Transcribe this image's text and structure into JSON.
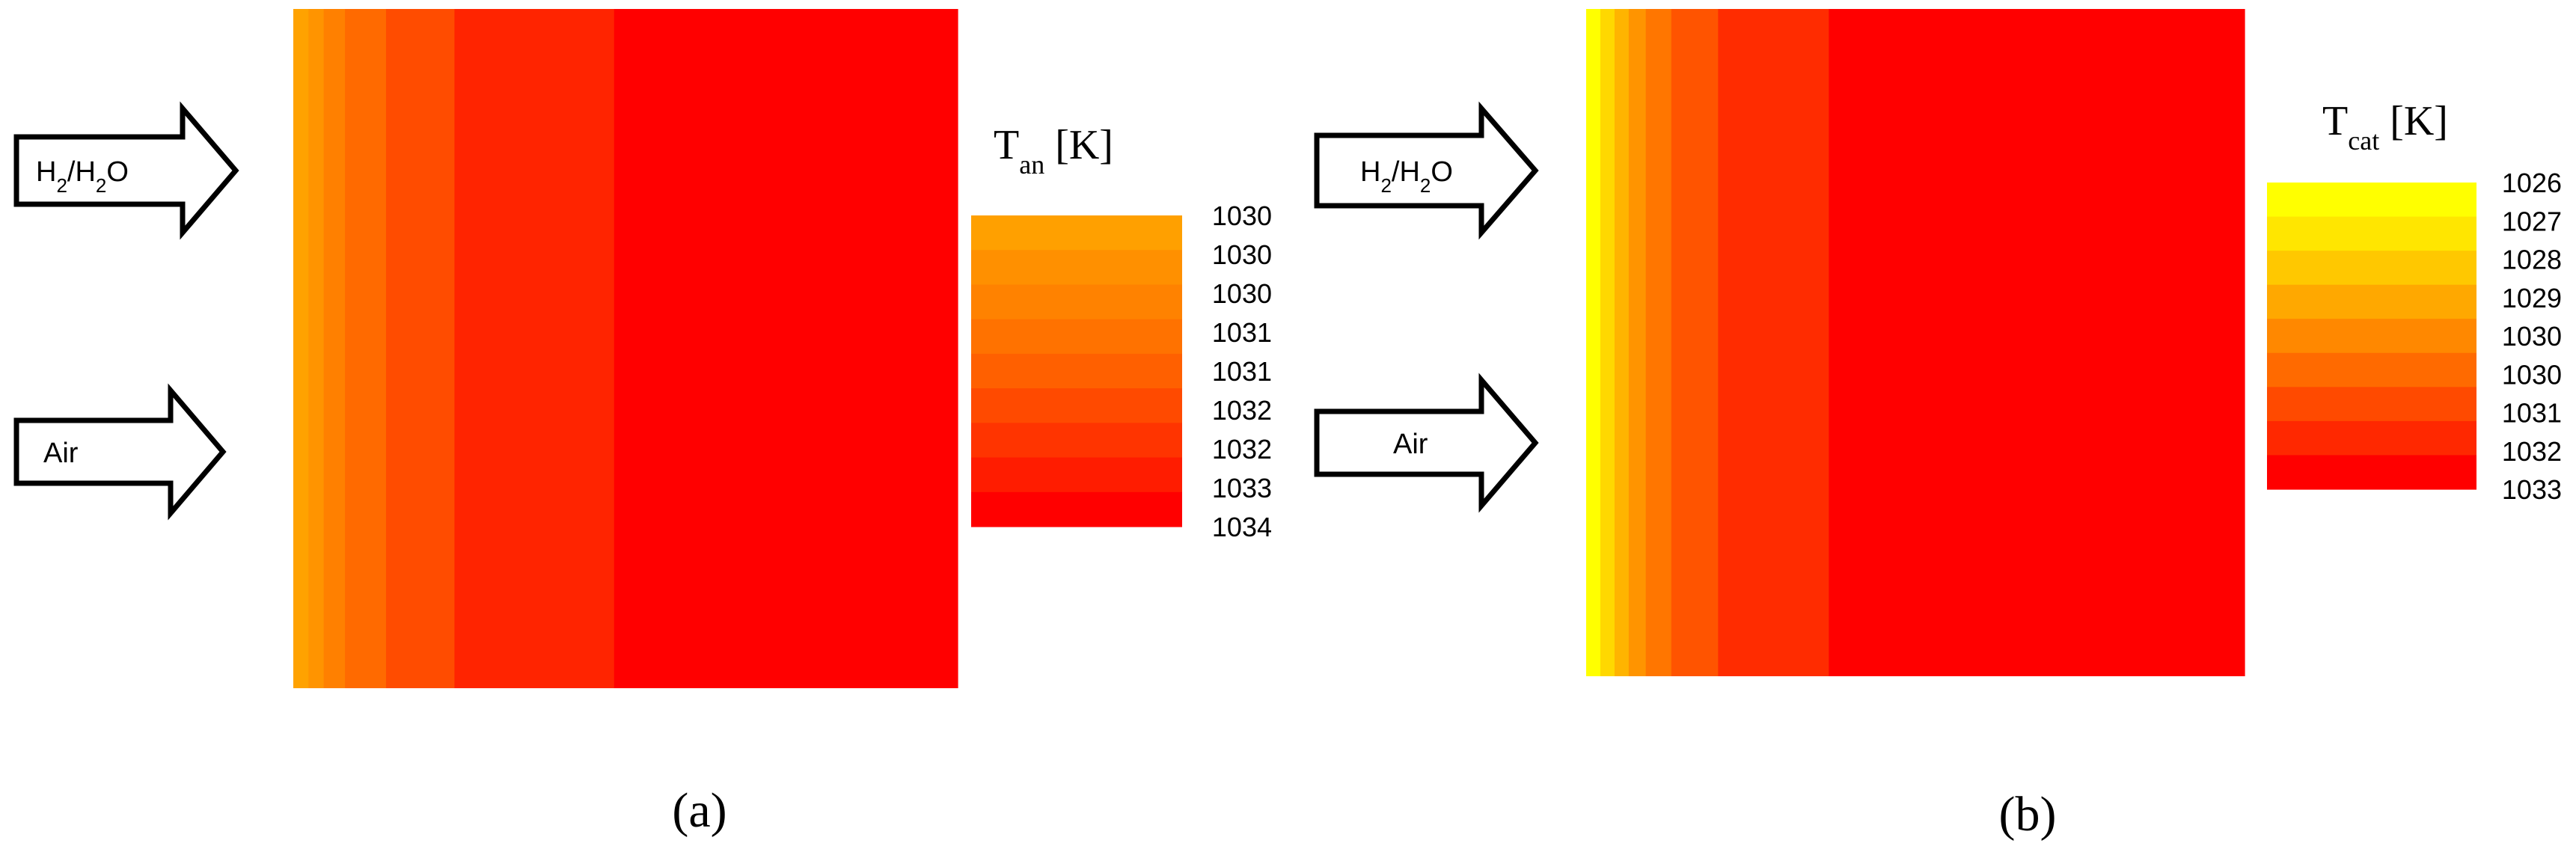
{
  "panels": [
    {
      "id": "a",
      "caption": "(a)",
      "arrows": [
        {
          "label_main": "H",
          "label_sub1": "2",
          "label_mid": "/H",
          "label_sub2": "2",
          "label_end": "O"
        },
        {
          "label_main": "Air"
        }
      ],
      "legend": {
        "title_main": "T",
        "title_sub": "an",
        "title_unit": " [K]",
        "ticks": [
          "1030",
          "1030",
          "1030",
          "1031",
          "1031",
          "1032",
          "1032",
          "1033",
          "1034"
        ]
      },
      "map_bands": [
        {
          "color": "#FFA200",
          "weight": 1.0
        },
        {
          "color": "#FF9400",
          "weight": 1.0
        },
        {
          "color": "#FF8000",
          "weight": 1.4
        },
        {
          "color": "#FF6A00",
          "weight": 2.7
        },
        {
          "color": "#FF4C00",
          "weight": 4.5
        },
        {
          "color": "#FF2400",
          "weight": 10.5
        },
        {
          "color": "#FF0000",
          "weight": 22.6
        }
      ],
      "legend_colors": [
        "#FFA000",
        "#FF9000",
        "#FF8200",
        "#FF7200",
        "#FF6000",
        "#FF4A00",
        "#FF3400",
        "#FF1C00",
        "#FF0000"
      ]
    },
    {
      "id": "b",
      "caption": "(b)",
      "arrows": [
        {
          "label_main": "H",
          "label_sub1": "2",
          "label_mid": "/H",
          "label_sub2": "2",
          "label_end": "O"
        },
        {
          "label_main": "Air"
        }
      ],
      "legend": {
        "title_main": "T",
        "title_sub": "cat",
        "title_unit": " [K]",
        "ticks": [
          "1026",
          "1027",
          "1028",
          "1029",
          "1030",
          "1030",
          "1031",
          "1032",
          "1033"
        ]
      },
      "map_bands": [
        {
          "color": "#FFFF00",
          "weight": 1.0
        },
        {
          "color": "#FFD800",
          "weight": 1.0
        },
        {
          "color": "#FFB400",
          "weight": 1.0
        },
        {
          "color": "#FF9400",
          "weight": 1.2
        },
        {
          "color": "#FF7600",
          "weight": 1.8
        },
        {
          "color": "#FF5400",
          "weight": 3.3
        },
        {
          "color": "#FF2C00",
          "weight": 7.8
        },
        {
          "color": "#FF0000",
          "weight": 29.3
        }
      ],
      "legend_colors": [
        "#FFFF00",
        "#FFE600",
        "#FFC800",
        "#FFA800",
        "#FF8800",
        "#FF6A00",
        "#FF4A00",
        "#FF2800",
        "#FF0000"
      ]
    }
  ]
}
